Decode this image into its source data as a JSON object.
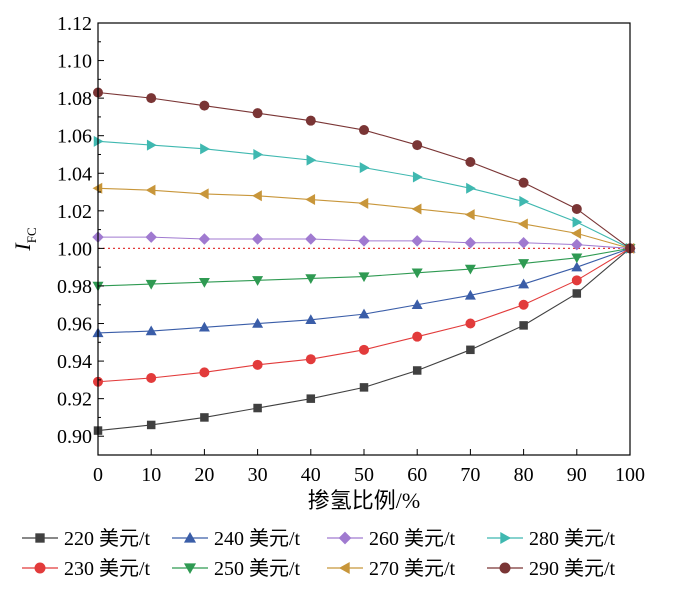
{
  "chart_data": {
    "type": "line",
    "title": "",
    "xlabel": "掺氢比例/%",
    "ylabel": "I",
    "ylabel_sub": "FC",
    "xlim": [
      0,
      100
    ],
    "ylim": [
      0.89,
      1.12
    ],
    "xticks": [
      "0",
      "10",
      "20",
      "30",
      "40",
      "50",
      "60",
      "70",
      "80",
      "90",
      "100"
    ],
    "yticks": [
      "0.90",
      "0.92",
      "0.94",
      "0.96",
      "0.98",
      "1.00",
      "1.02",
      "1.04",
      "1.06",
      "1.08",
      "1.10",
      "1.12"
    ],
    "reference_line": {
      "y": 1.0,
      "style": "dotted",
      "color": "#e23b3b"
    },
    "x": [
      0,
      10,
      20,
      30,
      40,
      50,
      60,
      70,
      80,
      90,
      100
    ],
    "series": [
      {
        "name": "220 美元/t",
        "marker": "square",
        "color": "#404040",
        "values": [
          0.903,
          0.906,
          0.91,
          0.915,
          0.92,
          0.926,
          0.935,
          0.946,
          0.959,
          0.976,
          1.0
        ]
      },
      {
        "name": "240 美元/t",
        "marker": "triangle-up",
        "color": "#3a5da8",
        "values": [
          0.955,
          0.956,
          0.958,
          0.96,
          0.962,
          0.965,
          0.97,
          0.975,
          0.981,
          0.99,
          1.0
        ]
      },
      {
        "name": "260 美元/t",
        "marker": "diamond",
        "color": "#a07ad0",
        "values": [
          1.006,
          1.006,
          1.005,
          1.005,
          1.005,
          1.004,
          1.004,
          1.003,
          1.003,
          1.002,
          1.0
        ]
      },
      {
        "name": "280 美元/t",
        "marker": "triangle-right",
        "color": "#3fb8b0",
        "values": [
          1.057,
          1.055,
          1.053,
          1.05,
          1.047,
          1.043,
          1.038,
          1.032,
          1.025,
          1.014,
          1.0
        ]
      },
      {
        "name": "230 美元/t",
        "marker": "circle",
        "color": "#e23b3b",
        "values": [
          0.929,
          0.931,
          0.934,
          0.938,
          0.941,
          0.946,
          0.953,
          0.96,
          0.97,
          0.983,
          1.0
        ]
      },
      {
        "name": "250 美元/t",
        "marker": "triangle-down",
        "color": "#2f9a52",
        "values": [
          0.98,
          0.981,
          0.982,
          0.983,
          0.984,
          0.985,
          0.987,
          0.989,
          0.992,
          0.995,
          1.0
        ]
      },
      {
        "name": "270 美元/t",
        "marker": "triangle-left",
        "color": "#c8963a",
        "values": [
          1.032,
          1.031,
          1.029,
          1.028,
          1.026,
          1.024,
          1.021,
          1.018,
          1.013,
          1.008,
          1.0
        ]
      },
      {
        "name": "290 美元/t",
        "marker": "circle",
        "color": "#7a3535",
        "values": [
          1.083,
          1.08,
          1.076,
          1.072,
          1.068,
          1.063,
          1.055,
          1.046,
          1.035,
          1.021,
          1.0
        ]
      }
    ]
  }
}
